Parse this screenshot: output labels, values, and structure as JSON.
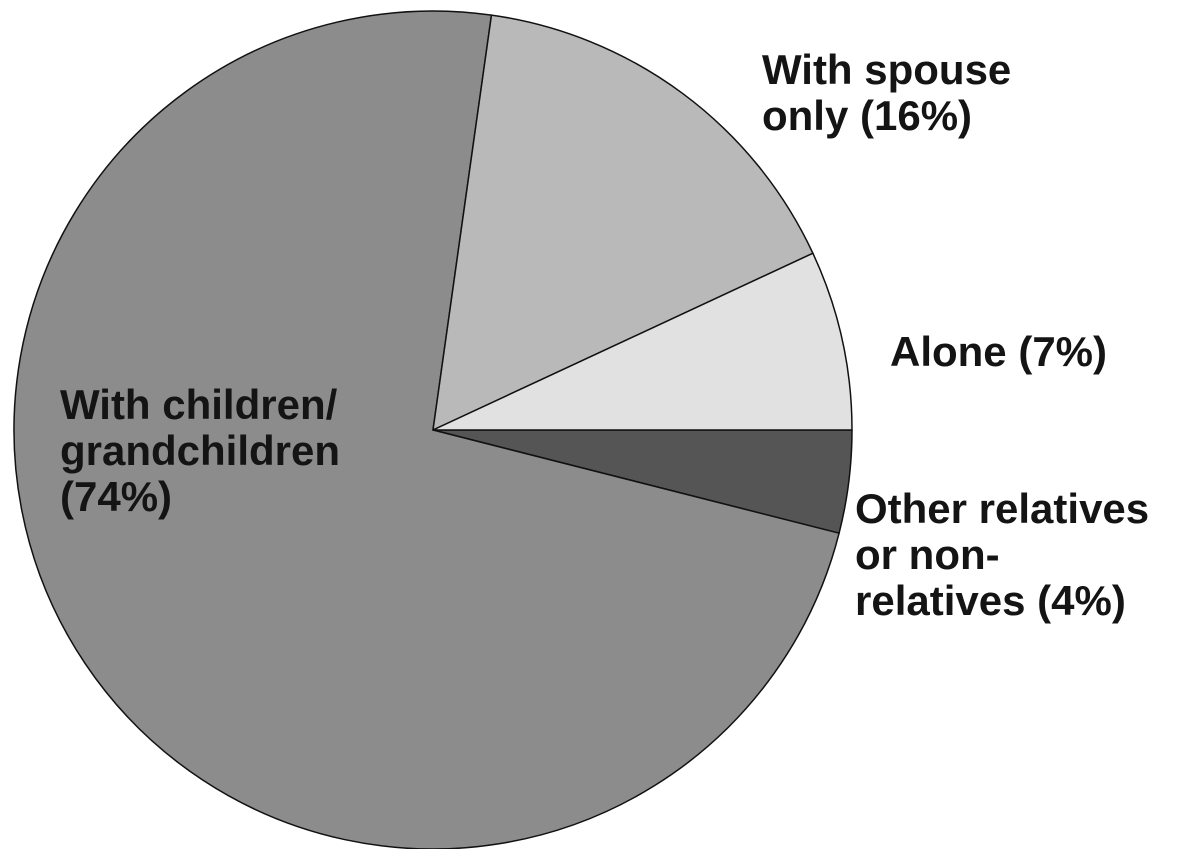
{
  "chart_data": {
    "type": "pie",
    "values": [
      4,
      74,
      16,
      7
    ],
    "value_labels": [
      "Other relatives or non-relatives (4%)",
      "With children/ grandchildren (74%)",
      "With spouse only (16%)",
      "Alone (7%)"
    ],
    "colors": [
      "#555555",
      "#8c8c8c",
      "#b9b9b9",
      "#e1e1e1"
    ]
  }
}
